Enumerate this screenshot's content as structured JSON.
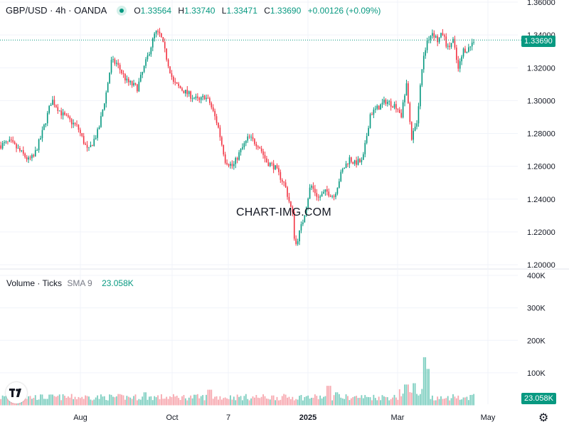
{
  "header": {
    "symbol": "GBP/USD · 4h · OANDA",
    "o_label": "O",
    "o_value": "1.33564",
    "h_label": "H",
    "h_value": "1.33740",
    "l_label": "L",
    "l_value": "1.33471",
    "c_label": "C",
    "c_value": "1.33690",
    "change": "+0.00126 (+0.09%)"
  },
  "volume_header": {
    "title": "Volume · Ticks",
    "sma_label": "SMA 9",
    "sma_value": "23.058K"
  },
  "watermark": "CHART-IMG.COM",
  "price_tag": "1.33690",
  "volume_tag": "23.058K",
  "colors": {
    "up": "#089981",
    "down": "#f23645",
    "vol_up": "#7fcfc1",
    "vol_down": "#f7a9b0",
    "grid": "#f0f3fa",
    "accent": "#089981"
  },
  "chart_data": [
    {
      "type": "candlestick",
      "title": "GBP/USD · 4h · OANDA",
      "y_ticks": [
        "1.36000",
        "1.34000",
        "1.32000",
        "1.30000",
        "1.28000",
        "1.26000",
        "1.24000",
        "1.22000",
        "1.20000"
      ],
      "ylim": [
        1.2,
        1.36
      ],
      "x_ticks": [
        "Aug",
        "Oct",
        "7",
        "2025",
        "Mar",
        "May"
      ],
      "last_price": 1.3369,
      "path": [
        {
          "t": 0,
          "p": 1.2727
        },
        {
          "t": 0.02,
          "p": 1.2747
        },
        {
          "t": 0.04,
          "p": 1.2687
        },
        {
          "t": 0.055,
          "p": 1.2637
        },
        {
          "t": 0.065,
          "p": 1.2657
        },
        {
          "t": 0.08,
          "p": 1.2787
        },
        {
          "t": 0.1,
          "p": 1.3007
        },
        {
          "t": 0.12,
          "p": 1.2917
        },
        {
          "t": 0.15,
          "p": 1.2837
        },
        {
          "t": 0.17,
          "p": 1.2687
        },
        {
          "t": 0.19,
          "p": 1.2817
        },
        {
          "t": 0.205,
          "p": 1.3047
        },
        {
          "t": 0.215,
          "p": 1.3237
        },
        {
          "t": 0.225,
          "p": 1.3227
        },
        {
          "t": 0.245,
          "p": 1.3117
        },
        {
          "t": 0.265,
          "p": 1.3077
        },
        {
          "t": 0.28,
          "p": 1.3217
        },
        {
          "t": 0.3,
          "p": 1.3417
        },
        {
          "t": 0.31,
          "p": 1.3397
        },
        {
          "t": 0.335,
          "p": 1.3107
        },
        {
          "t": 0.36,
          "p": 1.3047
        },
        {
          "t": 0.385,
          "p": 1.2997
        },
        {
          "t": 0.395,
          "p": 1.3027
        },
        {
          "t": 0.405,
          "p": 1.2987
        },
        {
          "t": 0.42,
          "p": 1.2857
        },
        {
          "t": 0.435,
          "p": 1.2637
        },
        {
          "t": 0.45,
          "p": 1.2597
        },
        {
          "t": 0.46,
          "p": 1.2667
        },
        {
          "t": 0.48,
          "p": 1.2777
        },
        {
          "t": 0.5,
          "p": 1.2727
        },
        {
          "t": 0.515,
          "p": 1.2627
        },
        {
          "t": 0.53,
          "p": 1.2597
        },
        {
          "t": 0.55,
          "p": 1.2487
        },
        {
          "t": 0.565,
          "p": 1.2307
        },
        {
          "t": 0.57,
          "p": 1.2107
        },
        {
          "t": 0.585,
          "p": 1.2267
        },
        {
          "t": 0.6,
          "p": 1.2487
        },
        {
          "t": 0.615,
          "p": 1.2407
        },
        {
          "t": 0.63,
          "p": 1.2447
        },
        {
          "t": 0.645,
          "p": 1.2417
        },
        {
          "t": 0.66,
          "p": 1.2567
        },
        {
          "t": 0.675,
          "p": 1.2647
        },
        {
          "t": 0.685,
          "p": 1.2617
        },
        {
          "t": 0.69,
          "p": 1.2627
        },
        {
          "t": 0.7,
          "p": 1.2627
        },
        {
          "t": 0.715,
          "p": 1.2917
        },
        {
          "t": 0.73,
          "p": 1.2957
        },
        {
          "t": 0.745,
          "p": 1.2997
        },
        {
          "t": 0.765,
          "p": 1.2967
        },
        {
          "t": 0.775,
          "p": 1.2917
        },
        {
          "t": 0.785,
          "p": 1.3087
        },
        {
          "t": 0.795,
          "p": 1.2777
        },
        {
          "t": 0.805,
          "p": 1.2867
        },
        {
          "t": 0.815,
          "p": 1.3207
        },
        {
          "t": 0.825,
          "p": 1.3367
        },
        {
          "t": 0.835,
          "p": 1.3417
        },
        {
          "t": 0.845,
          "p": 1.3367
        },
        {
          "t": 0.855,
          "p": 1.3407
        },
        {
          "t": 0.865,
          "p": 1.3317
        },
        {
          "t": 0.875,
          "p": 1.3367
        },
        {
          "t": 0.885,
          "p": 1.3187
        },
        {
          "t": 0.895,
          "p": 1.3307
        },
        {
          "t": 0.905,
          "p": 1.3317
        },
        {
          "t": 0.915,
          "p": 1.3369
        }
      ],
      "volume_peak_pct": [
        {
          "t": 0.28,
          "v": 0.1
        },
        {
          "t": 0.405,
          "v": 0.12
        },
        {
          "t": 0.635,
          "v": 0.15
        },
        {
          "t": 0.65,
          "v": 0.1
        },
        {
          "t": 0.785,
          "v": 0.16
        },
        {
          "t": 0.8,
          "v": 0.17
        },
        {
          "t": 0.82,
          "v": 0.37
        },
        {
          "t": 0.826,
          "v": 0.28
        }
      ]
    },
    {
      "type": "bar",
      "title": "Volume · Ticks",
      "y_ticks": [
        "400K",
        "300K",
        "200K",
        "100K"
      ],
      "ylim": [
        0,
        400000
      ],
      "last_value": "23.058K"
    }
  ]
}
